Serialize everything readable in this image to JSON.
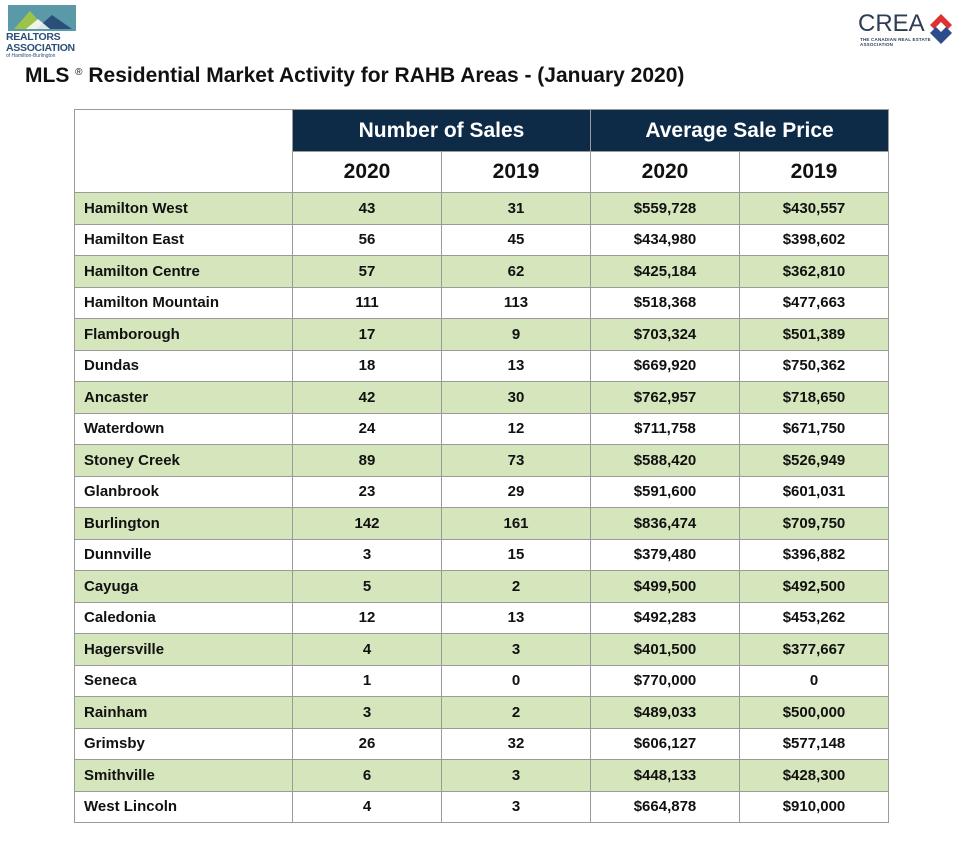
{
  "header": {
    "realtors_logo": {
      "line1": "REALTORS",
      "line2": "ASSOCIATION",
      "line3": "of Hamilton-Burlington"
    },
    "crea_logo": {
      "word": "CREA",
      "sub": "THE CANADIAN REAL ESTATE ASSOCIATION"
    },
    "title_prefix": "MLS",
    "title_reg": "®",
    "title_rest": "Residential Market Activity for RAHB Areas - (January 2020)"
  },
  "table": {
    "group_headers": [
      "Number of Sales",
      "Average Sale Price"
    ],
    "year_headers": [
      "2020",
      "2019",
      "2020",
      "2019"
    ],
    "rows": [
      {
        "area": "Hamilton West",
        "sales_2020": "43",
        "sales_2019": "31",
        "price_2020": "$559,728",
        "price_2019": "$430,557"
      },
      {
        "area": "Hamilton East",
        "sales_2020": "56",
        "sales_2019": "45",
        "price_2020": "$434,980",
        "price_2019": "$398,602"
      },
      {
        "area": "Hamilton Centre",
        "sales_2020": "57",
        "sales_2019": "62",
        "price_2020": "$425,184",
        "price_2019": "$362,810"
      },
      {
        "area": "Hamilton Mountain",
        "sales_2020": "111",
        "sales_2019": "113",
        "price_2020": "$518,368",
        "price_2019": "$477,663"
      },
      {
        "area": "Flamborough",
        "sales_2020": "17",
        "sales_2019": "9",
        "price_2020": "$703,324",
        "price_2019": "$501,389"
      },
      {
        "area": "Dundas",
        "sales_2020": "18",
        "sales_2019": "13",
        "price_2020": "$669,920",
        "price_2019": "$750,362"
      },
      {
        "area": "Ancaster",
        "sales_2020": "42",
        "sales_2019": "30",
        "price_2020": "$762,957",
        "price_2019": "$718,650"
      },
      {
        "area": "Waterdown",
        "sales_2020": "24",
        "sales_2019": "12",
        "price_2020": "$711,758",
        "price_2019": "$671,750"
      },
      {
        "area": "Stoney Creek",
        "sales_2020": "89",
        "sales_2019": "73",
        "price_2020": "$588,420",
        "price_2019": "$526,949"
      },
      {
        "area": "Glanbrook",
        "sales_2020": "23",
        "sales_2019": "29",
        "price_2020": "$591,600",
        "price_2019": "$601,031"
      },
      {
        "area": "Burlington",
        "sales_2020": "142",
        "sales_2019": "161",
        "price_2020": "$836,474",
        "price_2019": "$709,750"
      },
      {
        "area": "Dunnville",
        "sales_2020": "3",
        "sales_2019": "15",
        "price_2020": "$379,480",
        "price_2019": "$396,882"
      },
      {
        "area": "Cayuga",
        "sales_2020": "5",
        "sales_2019": "2",
        "price_2020": "$499,500",
        "price_2019": "$492,500"
      },
      {
        "area": "Caledonia",
        "sales_2020": "12",
        "sales_2019": "13",
        "price_2020": "$492,283",
        "price_2019": "$453,262"
      },
      {
        "area": "Hagersville",
        "sales_2020": "4",
        "sales_2019": "3",
        "price_2020": "$401,500",
        "price_2019": "$377,667"
      },
      {
        "area": "Seneca",
        "sales_2020": "1",
        "sales_2019": "0",
        "price_2020": "$770,000",
        "price_2019": "0"
      },
      {
        "area": "Rainham",
        "sales_2020": "3",
        "sales_2019": "2",
        "price_2020": "$489,033",
        "price_2019": "$500,000"
      },
      {
        "area": "Grimsby",
        "sales_2020": "26",
        "sales_2019": "32",
        "price_2020": "$606,127",
        "price_2019": "$577,148"
      },
      {
        "area": "Smithville",
        "sales_2020": "6",
        "sales_2019": "3",
        "price_2020": "$448,133",
        "price_2019": "$428,300"
      },
      {
        "area": "West Lincoln",
        "sales_2020": "4",
        "sales_2019": "3",
        "price_2020": "$664,878",
        "price_2019": "$910,000"
      }
    ]
  },
  "colors": {
    "header_navy": "#0d2a47",
    "row_green": "#d5e6bc",
    "row_white": "#ffffff",
    "grid": "#9a9a9a"
  }
}
